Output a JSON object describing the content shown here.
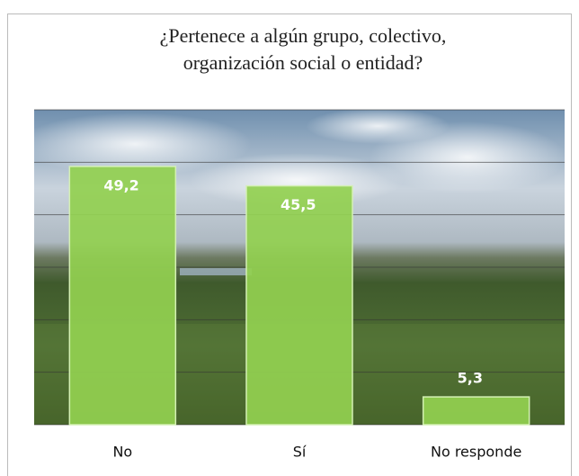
{
  "chart_data": {
    "type": "bar",
    "title": [
      "¿Pertenece a algún grupo, colectivo,",
      "organización social o entidad?"
    ],
    "categories": [
      "No",
      "Sí",
      "No responde"
    ],
    "values": [
      49.2,
      45.5,
      5.3
    ],
    "value_labels": [
      "49,2",
      "45,5",
      "5,3"
    ],
    "color": "#92d050",
    "ylim": [
      0,
      60
    ],
    "yticks": [
      0,
      10,
      20,
      30,
      40,
      50,
      60
    ],
    "grid": true
  }
}
